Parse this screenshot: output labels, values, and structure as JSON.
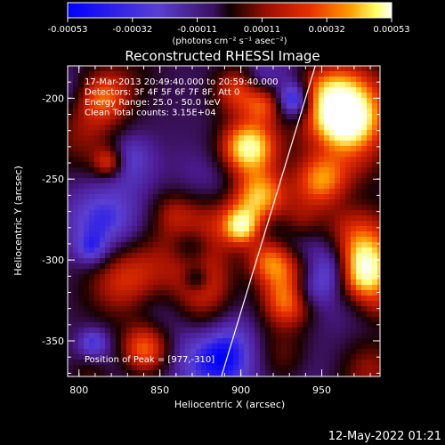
{
  "colorbar": {
    "tick_labels": [
      "-0.00053",
      "-0.00032",
      "-0.00011",
      "0.00011",
      "0.00032",
      "0.00053"
    ],
    "units_label": "(photons cm⁻² s⁻¹ asec⁻²)"
  },
  "chart_data": {
    "type": "heatmap",
    "title": "Reconstructed RHESSI Image",
    "xlabel": "Heliocentric X (arcsec)",
    "ylabel": "Heliocentric Y (arcsec)",
    "xlim": [
      793,
      986
    ],
    "ylim": [
      -372,
      -180
    ],
    "x_ticks": [
      800,
      850,
      900,
      950
    ],
    "y_ticks": [
      -200,
      -250,
      -300,
      -350
    ],
    "color_range": [
      -0.00053,
      0.00053
    ],
    "colormap": [
      "#0000ff",
      "#5a3fd2",
      "#4b1a8e",
      "#1a0000",
      "#a01000",
      "#e83000",
      "#ff9a00",
      "#ffff80",
      "#ffffff"
    ],
    "annotations": [
      "17-Mar-2013 20:49:40.000 to 20:59:40.000",
      "Detectors: 3F 4F 5F 6F 7F 8F, Att 0",
      "Energy Range: 25.0 - 50.0 keV",
      "Clean     Total counts: 3.15E+04"
    ],
    "peak_label": "Position of Peak = [977,-310]",
    "peak": [
      977,
      -310
    ],
    "limb_line": [
      [
        888,
        -372
      ],
      [
        946,
        -180
      ]
    ]
  },
  "footer": {
    "timestamp": "12-May-2022 01:21"
  }
}
